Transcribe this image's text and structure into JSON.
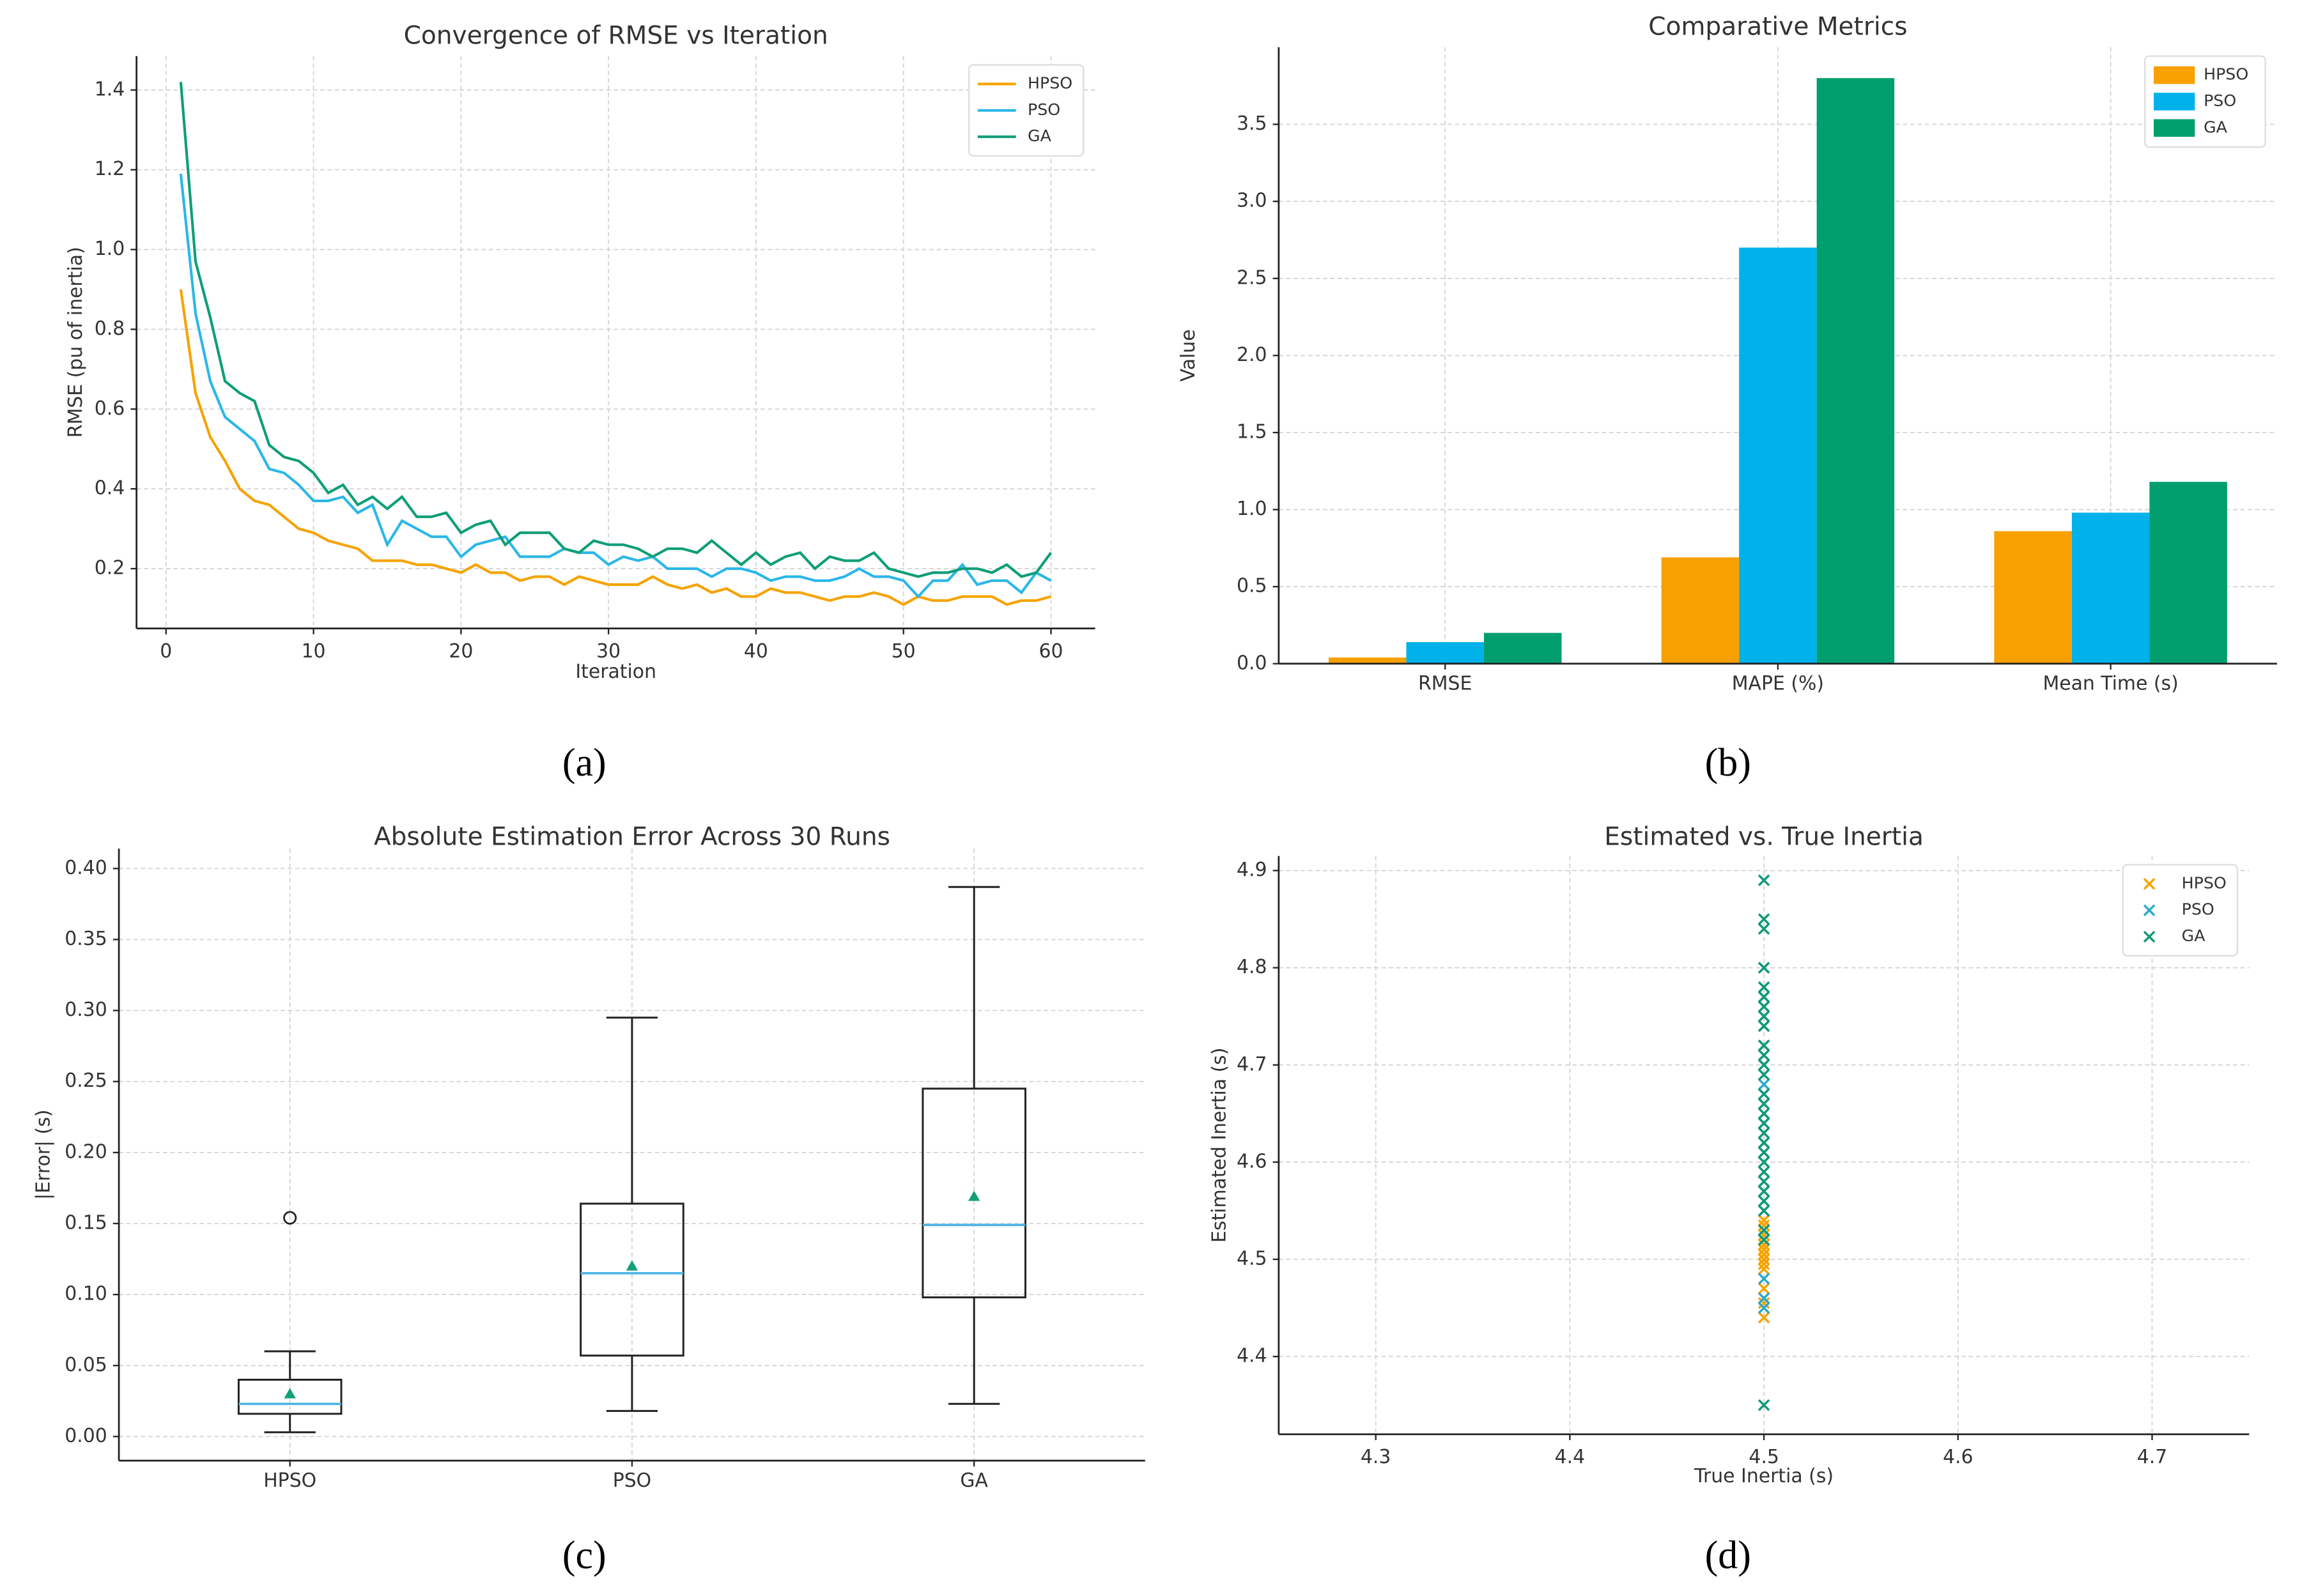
{
  "chart_data": [
    {
      "type": "line",
      "label": "(a)",
      "title": "Convergence of RMSE vs Iteration",
      "xlabel": "Iteration",
      "ylabel": "RMSE (pu of inertia)",
      "x": [
        1,
        2,
        3,
        4,
        5,
        6,
        7,
        8,
        9,
        10,
        11,
        12,
        13,
        14,
        15,
        16,
        17,
        18,
        19,
        20,
        21,
        22,
        23,
        24,
        25,
        26,
        27,
        28,
        29,
        30,
        31,
        32,
        33,
        34,
        35,
        36,
        37,
        38,
        39,
        40,
        41,
        42,
        43,
        44,
        45,
        46,
        47,
        48,
        49,
        50,
        51,
        52,
        53,
        54,
        55,
        56,
        57,
        58,
        59,
        60
      ],
      "series": [
        {
          "name": "HPSO",
          "color": "#f5a300",
          "values": [
            0.9,
            0.64,
            0.53,
            0.47,
            0.4,
            0.37,
            0.36,
            0.33,
            0.3,
            0.29,
            0.27,
            0.26,
            0.25,
            0.22,
            0.22,
            0.22,
            0.21,
            0.21,
            0.2,
            0.19,
            0.21,
            0.19,
            0.19,
            0.17,
            0.18,
            0.18,
            0.16,
            0.18,
            0.17,
            0.16,
            0.16,
            0.16,
            0.18,
            0.16,
            0.15,
            0.16,
            0.14,
            0.15,
            0.13,
            0.13,
            0.15,
            0.14,
            0.14,
            0.13,
            0.12,
            0.13,
            0.13,
            0.14,
            0.13,
            0.11,
            0.13,
            0.12,
            0.12,
            0.13,
            0.13,
            0.13,
            0.11,
            0.12,
            0.12,
            0.13
          ]
        },
        {
          "name": "PSO",
          "color": "#2bb7e8",
          "values": [
            1.19,
            0.84,
            0.67,
            0.58,
            0.55,
            0.52,
            0.45,
            0.44,
            0.41,
            0.37,
            0.37,
            0.38,
            0.34,
            0.36,
            0.26,
            0.32,
            0.3,
            0.28,
            0.28,
            0.23,
            0.26,
            0.27,
            0.28,
            0.23,
            0.23,
            0.23,
            0.25,
            0.24,
            0.24,
            0.21,
            0.23,
            0.22,
            0.23,
            0.2,
            0.2,
            0.2,
            0.18,
            0.2,
            0.2,
            0.19,
            0.17,
            0.18,
            0.18,
            0.17,
            0.17,
            0.18,
            0.2,
            0.18,
            0.18,
            0.17,
            0.13,
            0.17,
            0.17,
            0.21,
            0.16,
            0.17,
            0.17,
            0.14,
            0.19,
            0.17
          ]
        },
        {
          "name": "GA",
          "color": "#0e9e78",
          "values": [
            1.42,
            0.97,
            0.83,
            0.67,
            0.64,
            0.62,
            0.51,
            0.48,
            0.47,
            0.44,
            0.39,
            0.41,
            0.36,
            0.38,
            0.35,
            0.38,
            0.33,
            0.33,
            0.34,
            0.29,
            0.31,
            0.32,
            0.26,
            0.29,
            0.29,
            0.29,
            0.25,
            0.24,
            0.27,
            0.26,
            0.26,
            0.25,
            0.23,
            0.25,
            0.25,
            0.24,
            0.27,
            0.24,
            0.21,
            0.24,
            0.21,
            0.23,
            0.24,
            0.2,
            0.23,
            0.22,
            0.22,
            0.24,
            0.2,
            0.19,
            0.18,
            0.19,
            0.19,
            0.2,
            0.2,
            0.19,
            0.21,
            0.18,
            0.19,
            0.24
          ]
        }
      ],
      "xlim": [
        -2,
        63
      ],
      "xticks": [
        0,
        10,
        20,
        30,
        40,
        50,
        60
      ],
      "ylim": [
        0.05,
        1.485
      ],
      "yticks": [
        0.2,
        0.4,
        0.6,
        0.8,
        {
          "value": 1.0,
          "label": "1.0"
        },
        1.2,
        1.4
      ],
      "grid": true,
      "legend": "upper right"
    },
    {
      "type": "bar",
      "label": "(b)",
      "title": "Comparative Metrics",
      "ylabel": "Value",
      "categories": [
        "RMSE",
        "MAPE (%)",
        "Mean Time (s)"
      ],
      "series": [
        {
          "name": "HPSO",
          "color": "#f7a000",
          "values": [
            0.04,
            0.69,
            0.86
          ]
        },
        {
          "name": "PSO",
          "color": "#00b1ea",
          "values": [
            0.14,
            2.7,
            0.98
          ]
        },
        {
          "name": "GA",
          "color": "#009e6d",
          "values": [
            0.2,
            3.8,
            1.18
          ]
        }
      ],
      "ylim": [
        0,
        4.0
      ],
      "yticks": [
        {
          "value": 0,
          "label": "0.0"
        },
        0.5,
        {
          "value": 1,
          "label": "1.0"
        },
        1.5,
        {
          "value": 2,
          "label": "2.0"
        },
        2.5,
        {
          "value": 3,
          "label": "3.0"
        },
        3.5
      ],
      "grid": true,
      "legend": "upper right"
    },
    {
      "type": "box",
      "label": "(c)",
      "title": "Absolute Estimation Error Across 30 Runs",
      "ylabel": "|Error| (s)",
      "categories": [
        "HPSO",
        "PSO",
        "GA"
      ],
      "boxes": [
        {
          "whislo": 0.003,
          "q1": 0.016,
          "med": 0.023,
          "q3": 0.04,
          "whishi": 0.06,
          "mean": 0.03,
          "fliers": [
            0.154
          ]
        },
        {
          "whislo": 0.018,
          "q1": 0.057,
          "med": 0.115,
          "q3": 0.164,
          "whishi": 0.295,
          "mean": 0.12,
          "fliers": []
        },
        {
          "whislo": 0.023,
          "q1": 0.098,
          "med": 0.149,
          "q3": 0.245,
          "whishi": 0.387,
          "mean": 0.169,
          "fliers": []
        }
      ],
      "median_color": "#4fb3e6",
      "mean_color": "#12a07a",
      "ylim": [
        -0.017,
        0.414
      ],
      "yticks": [
        {
          "value": 0,
          "label": "0.00"
        },
        {
          "value": 0.05,
          "label": "0.05"
        },
        {
          "value": 0.1,
          "label": "0.10"
        },
        {
          "value": 0.15,
          "label": "0.15"
        },
        {
          "value": 0.2,
          "label": "0.20"
        },
        {
          "value": 0.25,
          "label": "0.25"
        },
        {
          "value": 0.3,
          "label": "0.30"
        },
        {
          "value": 0.35,
          "label": "0.35"
        },
        {
          "value": 0.4,
          "label": "0.40"
        }
      ],
      "grid": true
    },
    {
      "type": "scatter",
      "label": "(d)",
      "title": "Estimated vs. True Inertia",
      "xlabel": "True Inertia (s)",
      "ylabel": "Estimated Inertia (s)",
      "series": [
        {
          "name": "HPSO",
          "color": "#f5a300",
          "x": [
            4.5,
            4.5,
            4.5,
            4.5,
            4.5,
            4.5,
            4.5,
            4.5,
            4.5,
            4.5,
            4.5,
            4.5,
            4.5,
            4.5,
            4.5,
            4.5,
            4.5,
            4.5,
            4.5,
            4.5,
            4.5,
            4.5,
            4.5,
            4.5,
            4.5,
            4.5,
            4.5,
            4.5,
            4.5,
            4.5
          ],
          "values": [
            4.44,
            4.45,
            4.455,
            4.46,
            4.47,
            4.49,
            4.5,
            4.5,
            4.505,
            4.51,
            4.51,
            4.515,
            4.52,
            4.52,
            4.525,
            4.53,
            4.53,
            4.535,
            4.54,
            4.5,
            4.51,
            4.52,
            4.495,
            4.505,
            4.515,
            4.525,
            4.53,
            4.46,
            4.5,
            4.54
          ]
        },
        {
          "name": "PSO",
          "color": "#2aaad0",
          "x": [
            4.5,
            4.5,
            4.5,
            4.5,
            4.5,
            4.5,
            4.5,
            4.5,
            4.5,
            4.5,
            4.5,
            4.5,
            4.5,
            4.5,
            4.5,
            4.5,
            4.5,
            4.5,
            4.5,
            4.5,
            4.5,
            4.5,
            4.5,
            4.5,
            4.5,
            4.5,
            4.5,
            4.5,
            4.5,
            4.5
          ],
          "values": [
            4.45,
            4.46,
            4.48,
            4.52,
            4.55,
            4.56,
            4.58,
            4.6,
            4.61,
            4.62,
            4.63,
            4.64,
            4.65,
            4.66,
            4.67,
            4.68,
            4.69,
            4.7,
            4.71,
            4.72,
            4.74,
            4.75,
            4.76,
            4.77,
            4.78,
            4.8,
            4.57,
            4.59,
            4.53,
            4.64
          ]
        },
        {
          "name": "GA",
          "color": "#10997a",
          "x": [
            4.5,
            4.5,
            4.5,
            4.5,
            4.5,
            4.5,
            4.5,
            4.5,
            4.5,
            4.5,
            4.5,
            4.5,
            4.5,
            4.5,
            4.5,
            4.5,
            4.5,
            4.5,
            4.5,
            4.5,
            4.5,
            4.5,
            4.5,
            4.5,
            4.5,
            4.5,
            4.5,
            4.5,
            4.5,
            4.5
          ],
          "values": [
            4.35,
            4.52,
            4.53,
            4.55,
            4.56,
            4.57,
            4.59,
            4.6,
            4.61,
            4.62,
            4.63,
            4.65,
            4.66,
            4.67,
            4.69,
            4.71,
            4.72,
            4.72,
            4.74,
            4.76,
            4.77,
            4.78,
            4.8,
            4.84,
            4.85,
            4.89,
            4.64,
            4.58,
            4.7,
            4.75
          ]
        }
      ],
      "xlim": [
        4.25,
        4.75
      ],
      "xticks": [
        4.3,
        4.4,
        4.5,
        4.6,
        4.7
      ],
      "ylim": [
        4.32,
        4.915
      ],
      "yticks": [
        4.4,
        4.5,
        4.6,
        4.7,
        4.8,
        4.9
      ],
      "grid": true,
      "legend": "upper right"
    }
  ]
}
